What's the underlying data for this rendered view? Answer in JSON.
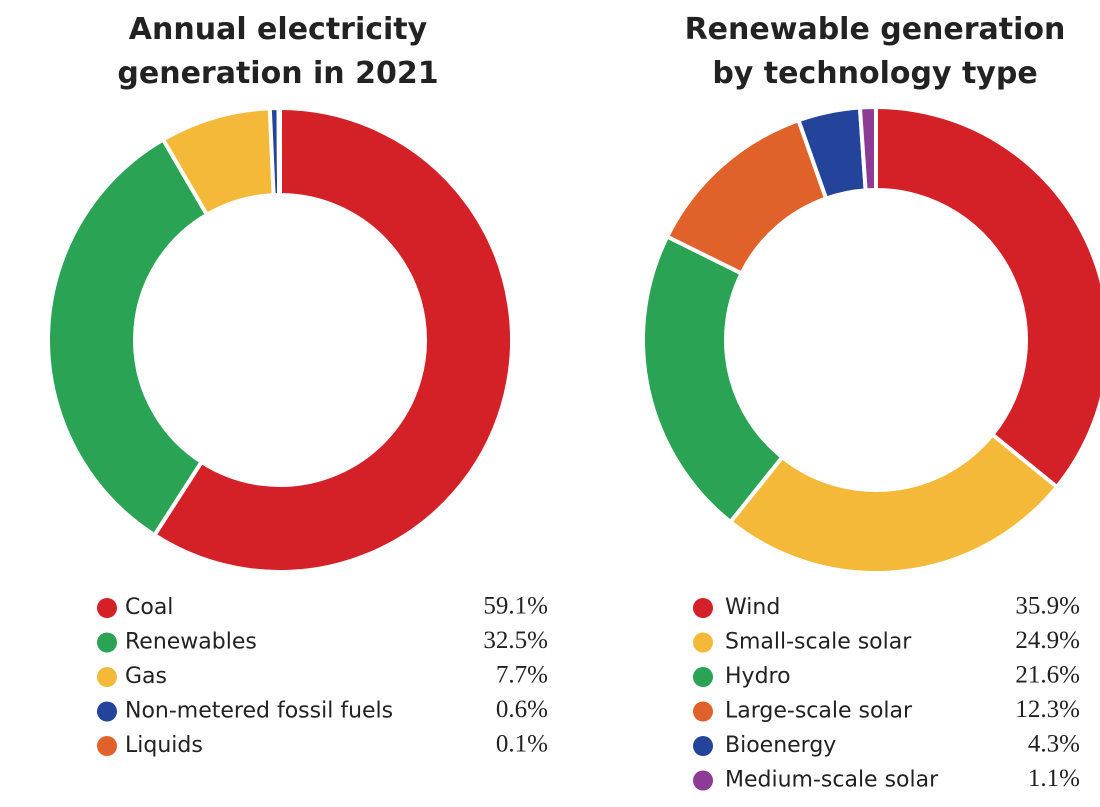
{
  "chart_data": [
    {
      "type": "pie",
      "title": "Annual electricity generation in 2021",
      "categories": [
        "Coal",
        "Renewables",
        "Gas",
        "Non-metered fossil fuels",
        "Liquids"
      ],
      "values": [
        59.1,
        32.5,
        7.7,
        0.6,
        0.1
      ],
      "value_labels": [
        "59.1%",
        "32.5%",
        "7.7%",
        "0.6%",
        "0.1%"
      ],
      "colors": [
        "#d42027",
        "#2aa354",
        "#f5b93a",
        "#23449a",
        "#e0622a"
      ]
    },
    {
      "type": "pie",
      "title": "Renewable generation by technology type",
      "categories": [
        "Wind",
        "Small-scale solar",
        "Hydro",
        "Large-scale solar",
        "Bioenergy",
        "Medium-scale solar"
      ],
      "values": [
        35.9,
        24.9,
        21.6,
        12.3,
        4.3,
        1.1
      ],
      "value_labels": [
        "35.9%",
        "24.9%",
        "21.6%",
        "12.3%",
        "4.3%",
        "1.1%"
      ],
      "colors": [
        "#d42027",
        "#f5b93a",
        "#2aa354",
        "#e0622a",
        "#23449a",
        "#8e3b95"
      ]
    }
  ]
}
